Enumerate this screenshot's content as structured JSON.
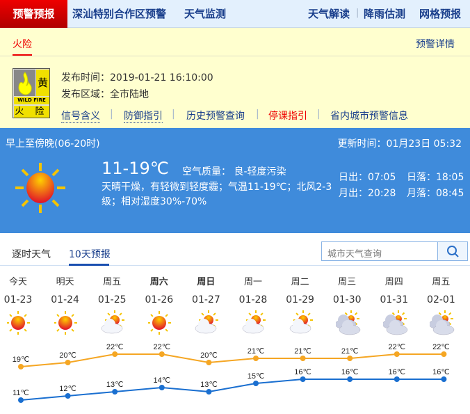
{
  "nav": {
    "brand": "预警预报",
    "items": [
      "深汕特别合作区预警",
      "天气监测"
    ],
    "right": [
      "天气解读",
      "降雨估测",
      "网格预报"
    ]
  },
  "warning": {
    "tab": "火险",
    "detail_link": "预警详情",
    "sign": {
      "level": "黄",
      "english": "WILD FIRE",
      "name": "火 险"
    },
    "time_label": "发布时间：",
    "time": "2019-01-21 16:10:00",
    "area_label": "发布区域：",
    "area": "全市陆地",
    "links": [
      "信号含义",
      "防御指引",
      "历史预警查询",
      "停课指引",
      "省内城市预警信息"
    ]
  },
  "today": {
    "period": "早上至傍晚(06-20时)",
    "update": "更新时间：01月23日 05:32",
    "temp": "11-19℃",
    "aqi": "空气质量： 良-轻度污染",
    "desc1": "天晴干燥，有轻微到轻度霾；气温11-19℃；北风2-3",
    "desc2": "级；相对湿度30%-70%",
    "sunrise": "日出：07:05",
    "sunset": "日落：18:05",
    "moonrise": "月出：20:28",
    "moonset": "月落：08:45",
    "icon": "sunny"
  },
  "tabs": {
    "hourly": "逐时天气",
    "tenday": "10天预报"
  },
  "search": {
    "placeholder": "城市天气查询",
    "icon": "search-icon"
  },
  "colors": {
    "high": "#f5a623",
    "low": "#1a6fd0",
    "accent": "#3f8bdb",
    "red": "#e00000"
  },
  "chart_data": {
    "type": "line",
    "categories": [
      "01-23",
      "01-24",
      "01-25",
      "01-26",
      "01-27",
      "01-28",
      "01-29",
      "01-30",
      "01-31",
      "02-01"
    ],
    "weekdays": [
      "今天",
      "明天",
      "周五",
      "周六",
      "周日",
      "周一",
      "周二",
      "周三",
      "周四",
      "周五"
    ],
    "icons": [
      "sunny",
      "sunny",
      "partly-cloudy",
      "sunny",
      "partly-cloudy",
      "partly-cloudy",
      "partly-cloudy",
      "cloudy",
      "cloudy",
      "cloudy"
    ],
    "series": [
      {
        "values": [
          19,
          20,
          22,
          22,
          20,
          21,
          21,
          21,
          22,
          22
        ],
        "labels": [
          "19℃",
          "20℃",
          "22℃",
          "22℃",
          "20℃",
          "21℃",
          "21℃",
          "21℃",
          "22℃",
          "22℃"
        ]
      },
      {
        "values": [
          11,
          12,
          13,
          14,
          13,
          15,
          16,
          16,
          16,
          16
        ],
        "labels": [
          "11℃",
          "12℃",
          "13℃",
          "14℃",
          "13℃",
          "15℃",
          "16℃",
          "16℃",
          "16℃",
          "16℃"
        ]
      }
    ]
  }
}
